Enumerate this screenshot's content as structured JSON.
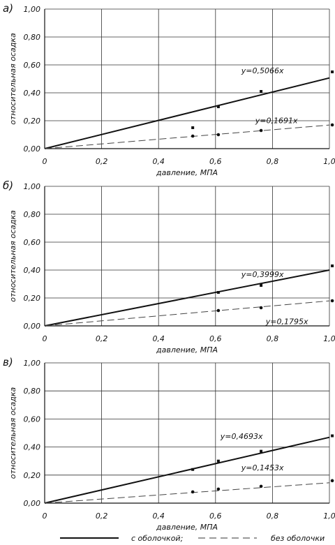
{
  "chart_data": [
    {
      "type": "scatter",
      "panel_label": "а)",
      "xlabel": "давление, МПА",
      "ylabel": "относительная осадка",
      "xlim": [
        0,
        1.0
      ],
      "ylim": [
        0,
        1.0
      ],
      "x_ticks": [
        "0",
        "0,2",
        "0,4",
        "0,6",
        "0,8",
        "1,0"
      ],
      "y_ticks": [
        "0,00",
        "0,20",
        "0,40",
        "0,60",
        "0,80",
        "1,00"
      ],
      "grid": true,
      "series": [
        {
          "name": "с оболочкой;",
          "trend_label": "y=0,5066x",
          "slope": 0.5066,
          "line_style": "solid",
          "marker": "square",
          "x": [
            0.52,
            0.61,
            0.76,
            1.01
          ],
          "y": [
            0.15,
            0.3,
            0.41,
            0.55
          ]
        },
        {
          "name": "без оболочки",
          "trend_label": "y=0,1691x",
          "slope": 0.1691,
          "line_style": "dashed",
          "marker": "circle",
          "x": [
            0.52,
            0.61,
            0.76,
            1.01
          ],
          "y": [
            0.09,
            0.1,
            0.13,
            0.17
          ]
        }
      ]
    },
    {
      "type": "scatter",
      "panel_label": "б)",
      "xlabel": "давление, МПА",
      "ylabel": "относительная осадка",
      "xlim": [
        0,
        1.0
      ],
      "ylim": [
        0,
        1.0
      ],
      "x_ticks": [
        "0",
        "0,2",
        "0,4",
        "0,6",
        "0,8",
        "1,0"
      ],
      "y_ticks": [
        "0,00",
        "0,20",
        "0,40",
        "0,60",
        "0,80",
        "1,00"
      ],
      "grid": true,
      "series": [
        {
          "name": "с оболочкой;",
          "trend_label": "y=0,3999x",
          "slope": 0.3999,
          "line_style": "solid",
          "marker": "square",
          "x": [
            0.61,
            0.76,
            1.01
          ],
          "y": [
            0.24,
            0.29,
            0.43
          ]
        },
        {
          "name": "без оболочки",
          "trend_label": "y=0,1795x",
          "slope": 0.1795,
          "line_style": "dashed",
          "marker": "circle",
          "x": [
            0.61,
            0.76,
            1.01
          ],
          "y": [
            0.11,
            0.13,
            0.18
          ]
        }
      ]
    },
    {
      "type": "scatter",
      "panel_label": "в)",
      "xlabel": "давление, МПА",
      "ylabel": "относительная осадка",
      "xlim": [
        0,
        1.0
      ],
      "ylim": [
        0,
        1.0
      ],
      "x_ticks": [
        "0",
        "0,2",
        "0,4",
        "0,6",
        "0,8",
        "1,0"
      ],
      "y_ticks": [
        "0,00",
        "0,20",
        "0,40",
        "0,60",
        "0,80",
        "1,00"
      ],
      "grid": true,
      "series": [
        {
          "name": "с оболочкой;",
          "trend_label": "y=0,4693x",
          "slope": 0.4693,
          "line_style": "solid",
          "marker": "square",
          "x": [
            0.52,
            0.61,
            0.76,
            1.01
          ],
          "y": [
            0.24,
            0.3,
            0.37,
            0.48
          ]
        },
        {
          "name": "без оболочки",
          "trend_label": "y=0,1453x",
          "slope": 0.1453,
          "line_style": "dashed",
          "marker": "circle",
          "x": [
            0.52,
            0.61,
            0.76,
            1.01
          ],
          "y": [
            0.08,
            0.1,
            0.12,
            0.16
          ]
        }
      ]
    }
  ],
  "legend": {
    "solid_label": "с оболочкой;",
    "dashed_label": "без оболочки"
  }
}
